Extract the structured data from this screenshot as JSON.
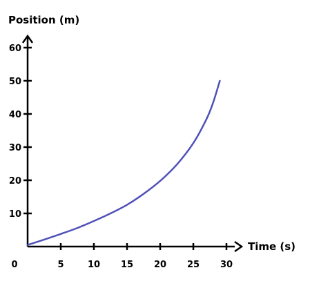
{
  "chart_data": {
    "type": "line",
    "title": "",
    "xlabel": "Time (s)",
    "ylabel": "Position (m)",
    "xlim": [
      0,
      30
    ],
    "ylim": [
      0,
      60
    ],
    "x_ticks": [
      0,
      5,
      10,
      15,
      20,
      25,
      30
    ],
    "y_ticks": [
      10,
      20,
      30,
      40,
      50,
      60
    ],
    "grid": false,
    "line_color": "#4f51b8",
    "series": [
      {
        "x": [
          0,
          2.5,
          5,
          7.5,
          10,
          12.5,
          15,
          17.5,
          20,
          22.5,
          25,
          27,
          28,
          29
        ],
        "values": [
          0.5,
          2.1,
          3.8,
          5.6,
          7.7,
          10,
          12.6,
          15.9,
          19.8,
          24.7,
          31.2,
          38.5,
          43.5,
          50
        ]
      }
    ]
  }
}
